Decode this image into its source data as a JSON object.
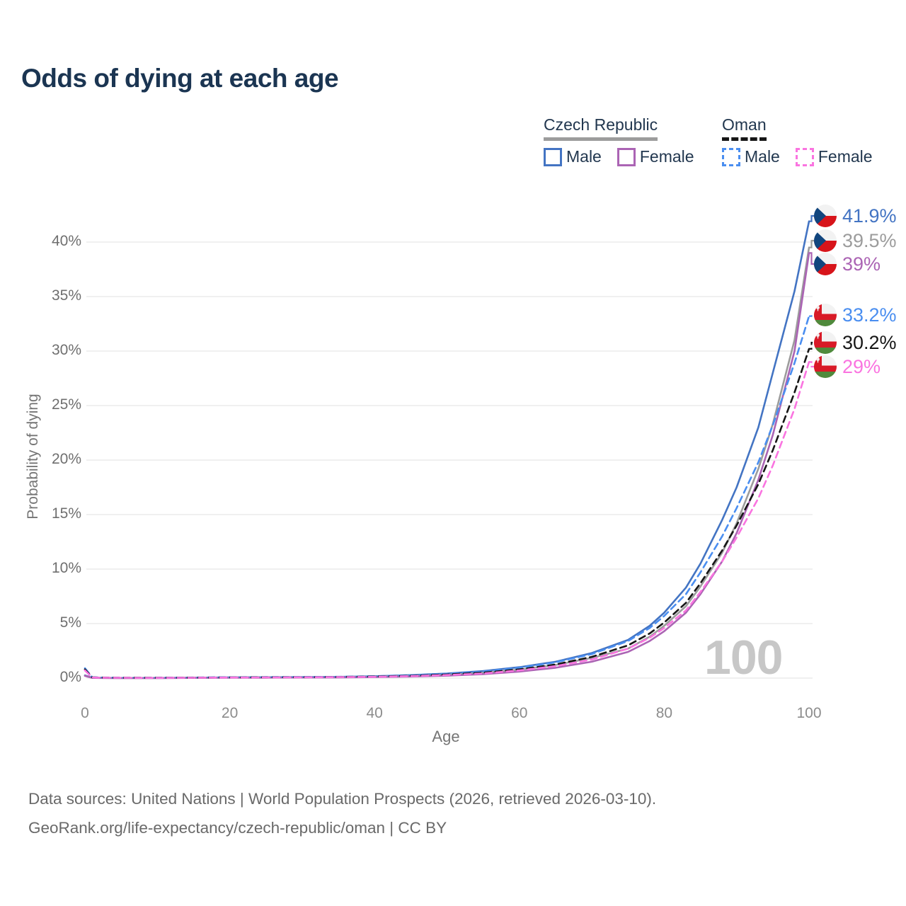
{
  "header": {
    "title": "Odds of dying at each age"
  },
  "legend": {
    "groups": [
      {
        "label": "Czech Republic",
        "line_style": "solid",
        "underline_color": "#9c9c9c",
        "items": [
          {
            "label": "Male",
            "color": "#4374c3",
            "style": "solid"
          },
          {
            "label": "Female",
            "color": "#ab64b4",
            "style": "solid"
          }
        ]
      },
      {
        "label": "Oman",
        "line_style": "dashed",
        "underline_color": "#161616",
        "items": [
          {
            "label": "Male",
            "color": "#4a8ef0",
            "style": "dashed"
          },
          {
            "label": "Female",
            "color": "#fa74e0",
            "style": "dashed"
          }
        ]
      }
    ]
  },
  "chart_data": {
    "type": "line",
    "title": "Odds of dying at each age",
    "xlabel": "Age",
    "ylabel": "Probability of dying",
    "xlim": [
      0,
      100
    ],
    "ylim": [
      0,
      43
    ],
    "grid": "horizontal",
    "y_ticks": [
      "0%",
      "5%",
      "10%",
      "15%",
      "20%",
      "25%",
      "30%",
      "35%",
      "40%"
    ],
    "x_ticks": [
      0,
      20,
      40,
      60,
      80,
      100
    ],
    "watermark": "100",
    "x": [
      0,
      1,
      2,
      5,
      10,
      15,
      20,
      25,
      30,
      35,
      40,
      45,
      50,
      55,
      60,
      65,
      70,
      75,
      78,
      80,
      83,
      85,
      88,
      90,
      93,
      95,
      98,
      100
    ],
    "series": [
      {
        "name": "Czech Republic — Male",
        "country": "Czech Republic",
        "sex": "Male",
        "style": "solid",
        "color": "#4374c3",
        "flag": "cz",
        "end_label": "41.9%",
        "end_value": 41.9,
        "values": [
          0.25,
          0.03,
          0.02,
          0.01,
          0.01,
          0.035,
          0.07,
          0.08,
          0.09,
          0.11,
          0.17,
          0.27,
          0.42,
          0.65,
          1.0,
          1.5,
          2.3,
          3.5,
          4.8,
          6.0,
          8.3,
          10.5,
          14.5,
          17.5,
          23.0,
          28.0,
          35.5,
          41.9
        ]
      },
      {
        "name": "Czech Republic — Overall",
        "country": "Czech Republic",
        "sex": "Both sexes",
        "style": "solid",
        "color": "#9c9c9c",
        "flag": "cz",
        "end_label": "39.5%",
        "end_value": 39.5,
        "values": [
          0.22,
          0.025,
          0.018,
          0.009,
          0.009,
          0.025,
          0.045,
          0.05,
          0.06,
          0.08,
          0.12,
          0.19,
          0.3,
          0.48,
          0.78,
          1.2,
          1.85,
          2.7,
          3.8,
          4.8,
          6.6,
          8.4,
          11.5,
          14.2,
          19.2,
          23.3,
          31.0,
          39.5
        ]
      },
      {
        "name": "Czech Republic — Female",
        "country": "Czech Republic",
        "sex": "Female",
        "style": "solid",
        "color": "#ab64b4",
        "flag": "cz",
        "end_label": "39%",
        "end_value": 39.0,
        "values": [
          0.2,
          0.02,
          0.015,
          0.008,
          0.008,
          0.02,
          0.03,
          0.04,
          0.05,
          0.06,
          0.09,
          0.14,
          0.22,
          0.36,
          0.6,
          0.95,
          1.5,
          2.4,
          3.4,
          4.3,
          6.0,
          7.7,
          10.7,
          13.3,
          18.2,
          22.3,
          30.0,
          39.0
        ]
      },
      {
        "name": "Oman — Male",
        "country": "Oman",
        "sex": "Male",
        "style": "dashed",
        "color": "#4a8ef0",
        "flag": "om",
        "end_label": "33.2%",
        "end_value": 33.2,
        "values": [
          0.9,
          0.08,
          0.05,
          0.03,
          0.03,
          0.05,
          0.08,
          0.09,
          0.1,
          0.12,
          0.17,
          0.26,
          0.4,
          0.6,
          0.95,
          1.45,
          2.2,
          3.4,
          4.6,
          5.7,
          7.7,
          9.7,
          13.0,
          15.6,
          19.8,
          23.2,
          28.9,
          33.2
        ]
      },
      {
        "name": "Oman — Overall",
        "country": "Oman",
        "sex": "Both sexes",
        "style": "dashed",
        "color": "#161616",
        "flag": "om",
        "end_label": "30.2%",
        "end_value": 30.2,
        "values": [
          0.8,
          0.07,
          0.045,
          0.027,
          0.025,
          0.04,
          0.06,
          0.07,
          0.08,
          0.1,
          0.14,
          0.21,
          0.33,
          0.5,
          0.8,
          1.25,
          1.95,
          3.0,
          4.1,
          5.1,
          6.9,
          8.7,
          11.7,
          14.0,
          17.8,
          20.9,
          26.2,
          30.2
        ]
      },
      {
        "name": "Oman — Female",
        "country": "Oman",
        "sex": "Female",
        "style": "dashed",
        "color": "#fa74e0",
        "flag": "om",
        "end_label": "29%",
        "end_value": 29.0,
        "values": [
          0.7,
          0.06,
          0.04,
          0.024,
          0.02,
          0.03,
          0.05,
          0.06,
          0.07,
          0.09,
          0.12,
          0.18,
          0.28,
          0.42,
          0.7,
          1.1,
          1.7,
          2.7,
          3.7,
          4.6,
          6.2,
          7.9,
          10.7,
          12.9,
          16.5,
          19.5,
          24.7,
          29.0
        ]
      }
    ]
  },
  "footer": {
    "line1": "Data sources: United Nations | World Population Prospects (2026, retrieved 2026-03-10).",
    "line2": "GeoRank.org/life-expectancy/czech-republic/oman | CC BY"
  }
}
